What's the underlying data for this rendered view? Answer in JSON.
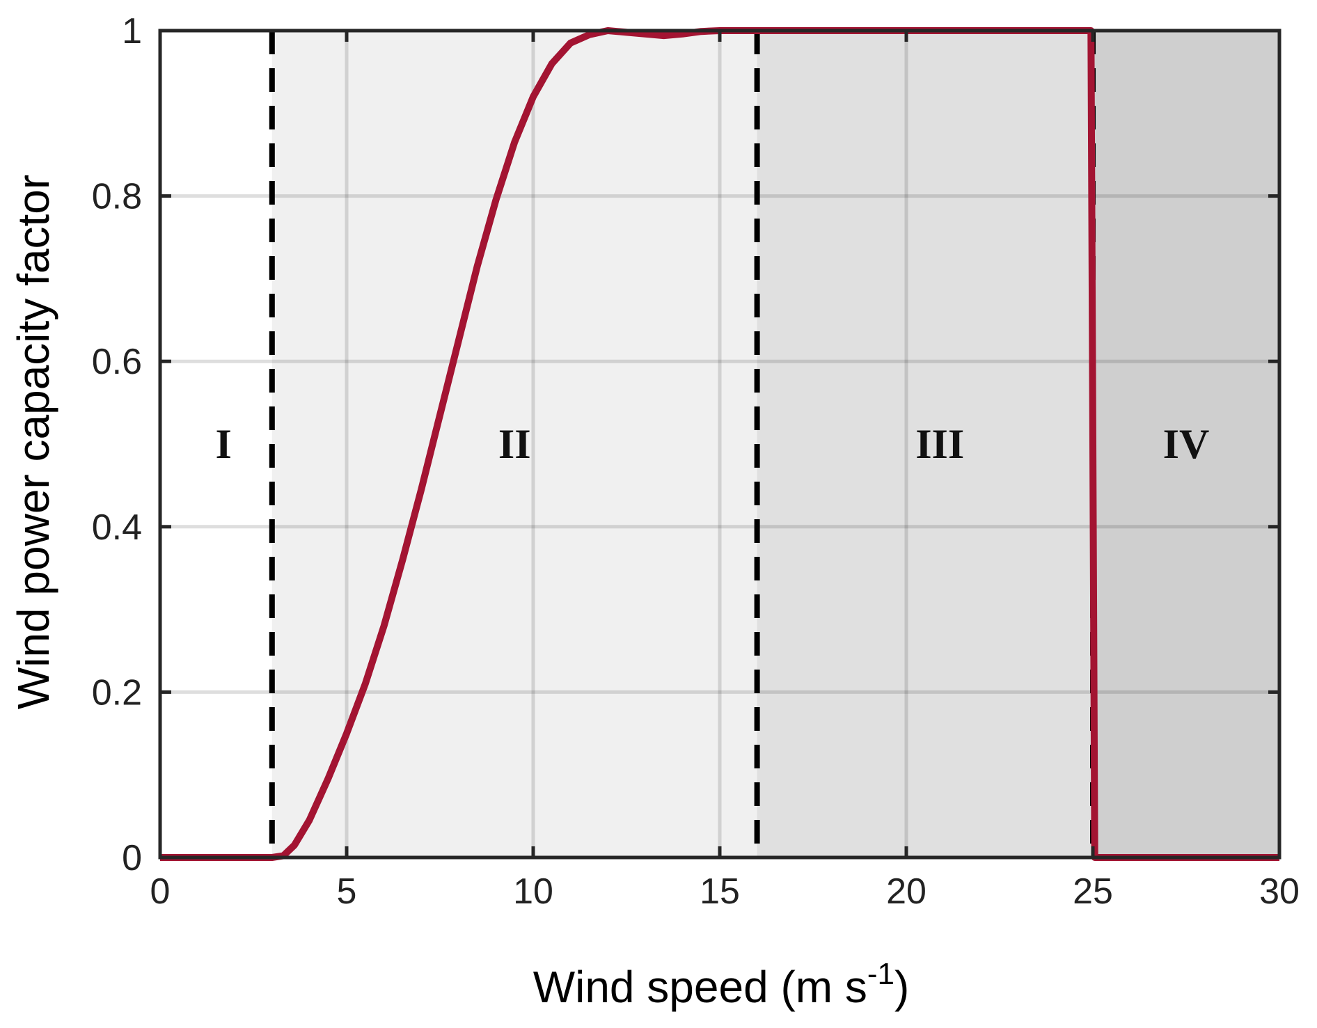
{
  "chart_data": {
    "type": "line",
    "title": "",
    "xlabel": "Wind speed (m s",
    "xlabel_superscript": "-1",
    "xlabel_suffix": ")",
    "ylabel": "Wind power capacity factor",
    "xlim": [
      0,
      30
    ],
    "ylim": [
      0,
      1
    ],
    "x_ticks": [
      0,
      5,
      10,
      15,
      20,
      25,
      30
    ],
    "y_ticks": [
      0,
      0.2,
      0.4,
      0.6,
      0.8,
      1
    ],
    "x_tick_labels": [
      "0",
      "5",
      "10",
      "15",
      "20",
      "25",
      "30"
    ],
    "y_tick_labels": [
      "0",
      "0.2",
      "0.4",
      "0.6",
      "0.8",
      "1"
    ],
    "grid": true,
    "regions": [
      {
        "label": "I",
        "x_start": 0,
        "x_end": 3,
        "label_x": 1.7,
        "label_y": 0.5,
        "fill": "#ffffff"
      },
      {
        "label": "II",
        "x_start": 3,
        "x_end": 16,
        "label_x": 9.5,
        "label_y": 0.5,
        "fill": "#f0f0f0"
      },
      {
        "label": "III",
        "x_start": 16,
        "x_end": 25,
        "label_x": 20.9,
        "label_y": 0.5,
        "fill": "#e0e0e0"
      },
      {
        "label": "IV",
        "x_start": 25,
        "x_end": 30,
        "label_x": 27.5,
        "label_y": 0.5,
        "fill": "#cfcfcf"
      }
    ],
    "boundaries": [
      3,
      16,
      25
    ],
    "series": [
      {
        "color": "#a31432",
        "x": [
          0,
          3,
          3.3,
          3.6,
          4,
          4.5,
          5,
          5.5,
          6,
          6.5,
          7,
          7.5,
          8,
          8.5,
          9,
          9.5,
          10,
          10.5,
          11,
          11.5,
          12,
          12.5,
          13,
          13.5,
          14,
          14.5,
          15,
          15.5,
          16,
          20,
          24.95,
          25,
          25.05,
          30
        ],
        "y": [
          0,
          0,
          0.002,
          0.015,
          0.045,
          0.095,
          0.15,
          0.21,
          0.28,
          0.36,
          0.445,
          0.535,
          0.625,
          0.715,
          0.795,
          0.865,
          0.92,
          0.96,
          0.985,
          0.995,
          1.0,
          0.998,
          0.996,
          0.994,
          0.996,
          0.999,
          1.0,
          1.0,
          1.0,
          1.0,
          1.0,
          0.5,
          0,
          0
        ]
      }
    ]
  }
}
